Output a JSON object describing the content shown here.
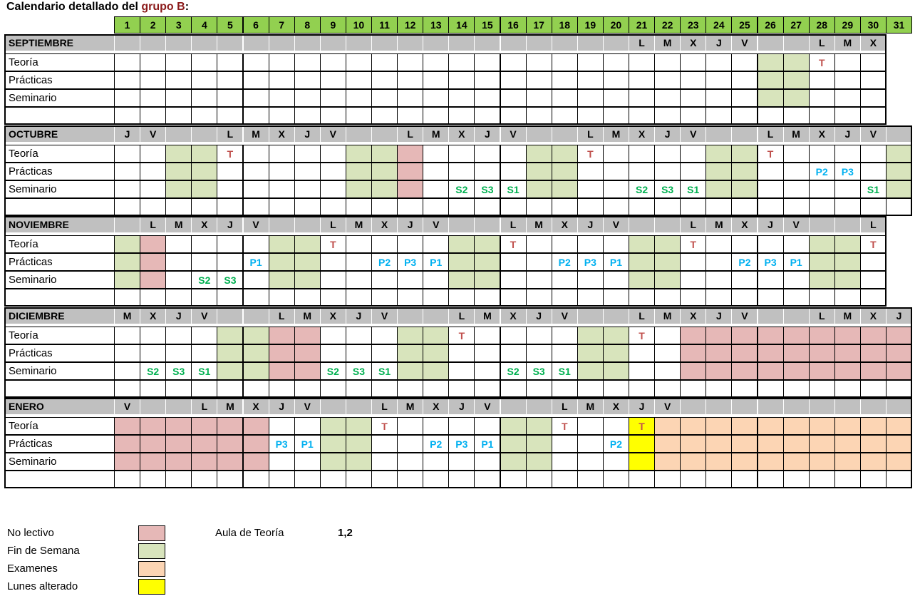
{
  "title": {
    "prefix": "Calendario detallado del ",
    "highlight": "grupo B",
    "suffix": ":"
  },
  "days": [
    "1",
    "2",
    "3",
    "4",
    "5",
    "6",
    "7",
    "8",
    "9",
    "10",
    "11",
    "12",
    "13",
    "14",
    "15",
    "16",
    "17",
    "18",
    "19",
    "20",
    "21",
    "22",
    "23",
    "24",
    "25",
    "26",
    "27",
    "28",
    "29",
    "30",
    "31"
  ],
  "row_labels": [
    "Teoría",
    "Prácticas",
    "Seminario"
  ],
  "colors": {
    "day_header": "#92d050",
    "month_header": "#c0c0c0",
    "no_lectivo": "#e6b8b7",
    "fin_de_semana": "#d8e4bc",
    "examenes": "#fcd5b4",
    "lunes_alterado": "#ffff00",
    "teoria_mark": "#c0504d",
    "practicas_mark": "#00b0f0",
    "seminario_mark": "#00b050"
  },
  "months": [
    {
      "name": "SEPTIEMBRE",
      "ndays": 30,
      "weekdays": {
        "21": "L",
        "22": "M",
        "23": "X",
        "24": "J",
        "25": "V",
        "28": "L",
        "29": "M",
        "30": "X"
      },
      "fills": {
        "fin_de_semana": [
          26,
          27
        ]
      },
      "marks": {
        "teoria": {
          "28": "T"
        },
        "practicas": {},
        "seminario": {}
      }
    },
    {
      "name": "OCTUBRE",
      "ndays": 31,
      "weekdays": {
        "1": "J",
        "2": "V",
        "5": "L",
        "6": "M",
        "7": "X",
        "8": "J",
        "9": "V",
        "12": "L",
        "13": "M",
        "14": "X",
        "15": "J",
        "16": "V",
        "19": "L",
        "20": "M",
        "21": "X",
        "22": "J",
        "23": "V",
        "26": "L",
        "27": "M",
        "28": "X",
        "29": "J",
        "30": "V"
      },
      "fills": {
        "fin_de_semana": [
          3,
          4,
          10,
          11,
          17,
          18,
          24,
          25,
          31
        ],
        "no_lectivo": [
          12
        ]
      },
      "marks": {
        "teoria": {
          "5": "T",
          "19": "T",
          "26": "T"
        },
        "practicas": {
          "28": "P2",
          "29": "P3"
        },
        "seminario": {
          "14": "S2",
          "15": "S3",
          "16": "S1",
          "21": "S2",
          "22": "S3",
          "23": "S1",
          "30": "S1"
        }
      }
    },
    {
      "name": "NOVIEMBRE",
      "ndays": 30,
      "weekdays": {
        "2": "L",
        "3": "M",
        "4": "X",
        "5": "J",
        "6": "V",
        "9": "L",
        "10": "M",
        "11": "X",
        "12": "J",
        "13": "V",
        "16": "L",
        "17": "M",
        "18": "X",
        "19": "J",
        "20": "V",
        "23": "L",
        "24": "M",
        "25": "X",
        "26": "J",
        "27": "V",
        "30": "L"
      },
      "fills": {
        "fin_de_semana": [
          1,
          7,
          8,
          14,
          15,
          21,
          22,
          28,
          29
        ],
        "no_lectivo": [
          2
        ]
      },
      "marks": {
        "teoria": {
          "9": "T",
          "16": "T",
          "23": "T",
          "30": "T"
        },
        "practicas": {
          "6": "P1",
          "11": "P2",
          "12": "P3",
          "13": "P1",
          "18": "P2",
          "19": "P3",
          "20": "P1",
          "25": "P2",
          "26": "P3",
          "27": "P1"
        },
        "seminario": {
          "4": "S2",
          "5": "S3"
        }
      }
    },
    {
      "name": "DICIEMBRE",
      "ndays": 31,
      "weekdays": {
        "1": "M",
        "2": "X",
        "3": "J",
        "4": "V",
        "7": "L",
        "8": "M",
        "9": "X",
        "10": "J",
        "11": "V",
        "14": "L",
        "15": "M",
        "16": "X",
        "17": "J",
        "18": "V",
        "21": "L",
        "22": "M",
        "23": "X",
        "24": "J",
        "25": "V",
        "28": "L",
        "29": "M",
        "30": "X",
        "31": "J"
      },
      "fills": {
        "fin_de_semana": [
          5,
          6,
          12,
          13,
          19,
          20
        ],
        "no_lectivo": [
          7,
          8,
          23,
          24,
          25,
          26,
          27,
          28,
          29,
          30,
          31
        ]
      },
      "marks": {
        "teoria": {
          "14": "T",
          "21": "T"
        },
        "practicas": {},
        "seminario": {
          "2": "S2",
          "3": "S3",
          "4": "S1",
          "9": "S2",
          "10": "S3",
          "11": "S1",
          "16": "S2",
          "17": "S3",
          "18": "S1"
        }
      }
    },
    {
      "name": "ENERO",
      "ndays": 31,
      "weekdays": {
        "1": "V",
        "4": "L",
        "5": "M",
        "6": "X",
        "7": "J",
        "8": "V",
        "11": "L",
        "12": "M",
        "13": "X",
        "14": "J",
        "15": "V",
        "18": "L",
        "19": "M",
        "20": "X",
        "21": "J",
        "22": "V"
      },
      "fills": {
        "no_lectivo": [
          1,
          2,
          3,
          4,
          5,
          6
        ],
        "fin_de_semana": [
          9,
          10,
          16,
          17
        ],
        "lunes_alterado": [
          21
        ],
        "examenes": [
          22,
          23,
          24,
          25,
          26,
          27,
          28,
          29,
          30,
          31
        ]
      },
      "marks": {
        "teoria": {
          "11": "T",
          "18": "T",
          "21": "T"
        },
        "practicas": {
          "7": "P3",
          "8": "P1",
          "13": "P2",
          "14": "P3",
          "15": "P1",
          "20": "P2"
        },
        "seminario": {}
      }
    }
  ],
  "legend": [
    {
      "label": "No lectivo",
      "color": "#e6b8b7"
    },
    {
      "label": "Fin de Semana",
      "color": "#d8e4bc"
    },
    {
      "label": "Examenes",
      "color": "#fcd5b4"
    },
    {
      "label": "Lunes alterado",
      "color": "#ffff00"
    }
  ],
  "aula": {
    "label": "Aula de Teoría",
    "value": "1,2"
  }
}
